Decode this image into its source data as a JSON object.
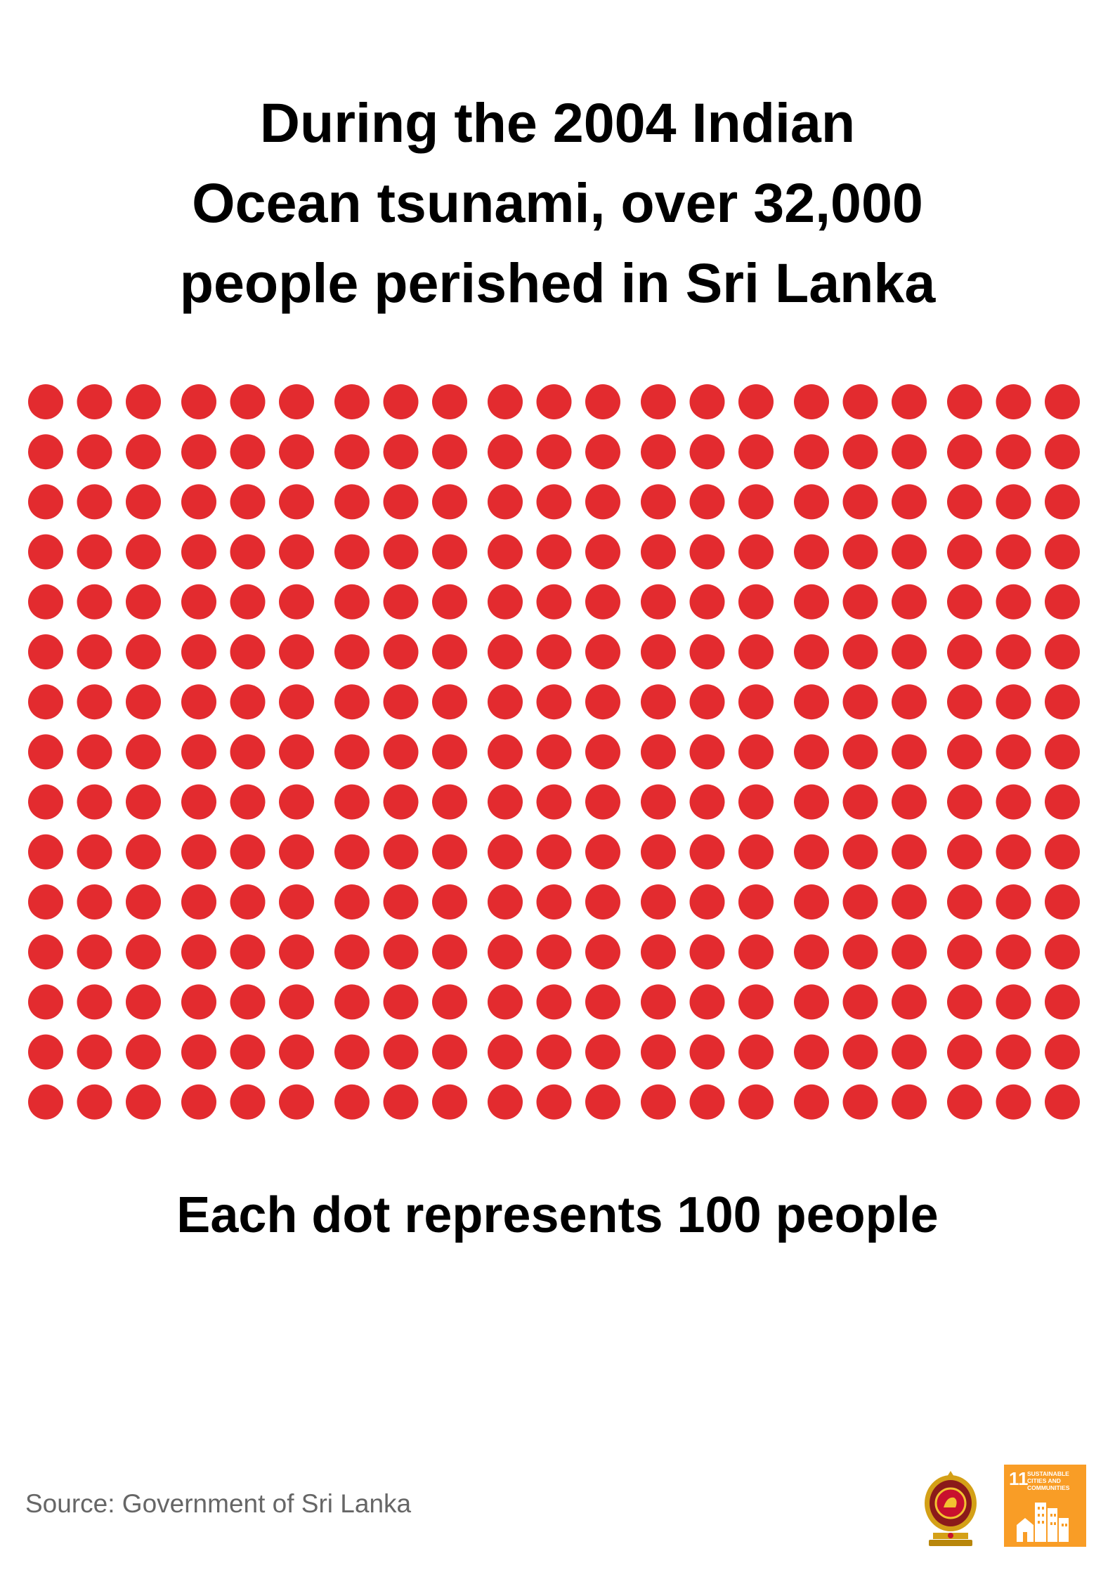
{
  "headline": {
    "lines": [
      "During the 2004 Indian",
      "Ocean tsunami, over 32,000",
      "people perished in Sri Lanka"
    ]
  },
  "chart_data": {
    "type": "pictogram",
    "rows": 15,
    "columns": 21,
    "dot_count": 315,
    "unit_value": 100,
    "unit_label": "Each dot represents 100 people",
    "dot_color": "#e32b2f"
  },
  "caption": "Each dot represents 100 people",
  "source": "Source: Government of Sri Lanka",
  "logos": {
    "emblem": {
      "icon": "sri-lanka-emblem-icon"
    },
    "sdg": {
      "icon": "sdg-11-icon",
      "number": "11",
      "text": "SUSTAINABLE CITIES AND COMMUNITIES",
      "color": "#f99d26"
    }
  }
}
